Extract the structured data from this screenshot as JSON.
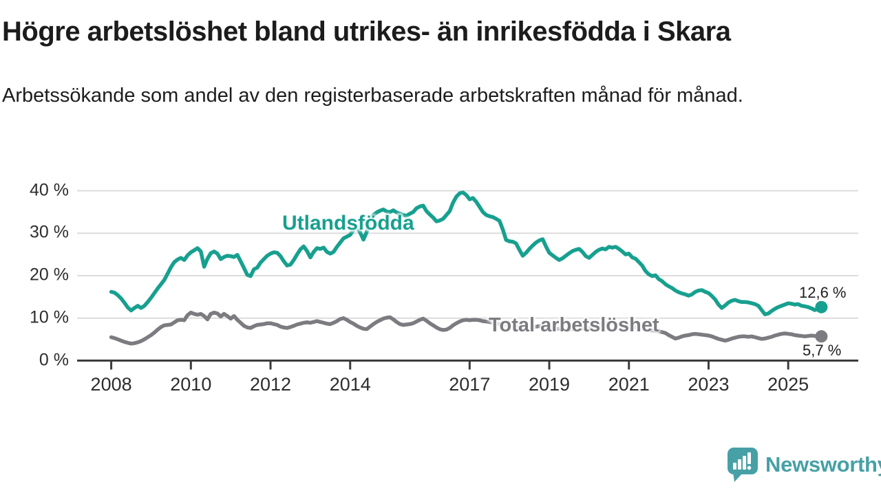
{
  "header": {
    "title": "Högre arbetslöshet bland utrikes- än inrikesfödda i Skara",
    "subtitle": "Arbetssökande som andel av den registerbaserade arbetskraften månad för månad."
  },
  "footer": {
    "brand_name": "Newsworthy"
  },
  "colors": {
    "series_foreign_born": "#17a08f",
    "series_total": "#7b7b80",
    "grid": "#dcdcdc",
    "axis": "#3c3c3c",
    "axis_text": "#2d2d2d",
    "logo_teal": "#47a0a6"
  },
  "chart_data": {
    "type": "line",
    "title": "Högre arbetslöshet bland utrikes- än inrikesfödda i Skara",
    "subtitle": "Arbetssökande som andel av den registerbaserade arbetskraften månad för månad.",
    "grid": true,
    "legend_position": "inline-labels-on-lines",
    "x_axis": {
      "unit": "year",
      "range_start": 2008.0,
      "range_end": 2025.83,
      "tick_years": [
        2008,
        2010,
        2012,
        2014,
        2017,
        2019,
        2021,
        2023,
        2025
      ],
      "tick_labels": [
        "2008",
        "2010",
        "2012",
        "2014",
        "2017",
        "2019",
        "2021",
        "2023",
        "2025"
      ]
    },
    "y_axis": {
      "unit": "percent",
      "ylim": [
        0,
        40
      ],
      "ticks": [
        0,
        10,
        20,
        30,
        40
      ],
      "tick_labels": [
        "0 %",
        "10 %",
        "20 %",
        "30 %",
        "40 %"
      ]
    },
    "series": [
      {
        "name": "Utlandsfödda",
        "label_annotation": "Utlandsfödda",
        "end_label": "12,6 %",
        "end_value": 12.6,
        "color": "#17a08f",
        "start_year": 2008,
        "points_per_year": 12,
        "values": [
          16.2,
          16.0,
          15.4,
          14.6,
          13.6,
          12.5,
          11.8,
          12.4,
          12.9,
          12.4,
          12.9,
          13.8,
          14.8,
          15.9,
          17.0,
          18.0,
          19.0,
          20.5,
          22.0,
          23.2,
          23.8,
          24.2,
          23.7,
          24.8,
          25.5,
          26.0,
          26.5,
          25.7,
          22.1,
          24.0,
          25.3,
          25.7,
          25.2,
          23.9,
          24.4,
          24.7,
          24.6,
          24.4,
          24.9,
          23.4,
          21.8,
          20.2,
          19.9,
          21.5,
          21.9,
          23.1,
          23.9,
          24.7,
          25.2,
          25.5,
          25.4,
          24.6,
          23.4,
          22.4,
          22.6,
          23.7,
          25.0,
          26.2,
          26.9,
          25.8,
          24.3,
          25.6,
          26.5,
          26.3,
          26.6,
          25.6,
          25.2,
          25.6,
          26.8,
          27.8,
          28.8,
          29.2,
          29.6,
          30.8,
          31.5,
          30.2,
          28.5,
          30.3,
          33.0,
          34.3,
          34.9,
          35.3,
          35.6,
          35.1,
          35.0,
          35.4,
          34.9,
          34.6,
          34.3,
          34.1,
          34.6,
          35.0,
          35.9,
          36.3,
          36.5,
          35.2,
          34.4,
          33.7,
          32.8,
          33.0,
          33.4,
          34.3,
          35.2,
          37.2,
          38.6,
          39.4,
          39.6,
          39.0,
          38.0,
          38.3,
          37.4,
          36.2,
          35.0,
          34.3,
          34.0,
          33.8,
          33.4,
          32.9,
          30.9,
          28.4,
          28.1,
          28.0,
          27.6,
          26.1,
          24.7,
          25.4,
          26.3,
          27.1,
          27.8,
          28.3,
          28.6,
          26.9,
          25.4,
          24.8,
          24.2,
          23.7,
          24.1,
          24.7,
          25.3,
          25.8,
          26.1,
          26.3,
          25.6,
          24.6,
          24.2,
          24.9,
          25.6,
          26.1,
          26.4,
          26.2,
          26.8,
          26.6,
          26.8,
          26.3,
          25.7,
          25.0,
          25.2,
          24.3,
          24.0,
          23.2,
          22.4,
          21.1,
          20.3,
          19.9,
          20.1,
          19.2,
          18.7,
          18.0,
          17.5,
          17.1,
          16.5,
          16.1,
          15.8,
          15.6,
          15.3,
          15.6,
          16.2,
          16.5,
          16.6,
          16.2,
          15.9,
          15.2,
          14.4,
          13.2,
          12.4,
          13.0,
          13.7,
          14.1,
          14.3,
          14.0,
          13.8,
          13.8,
          13.7,
          13.5,
          13.3,
          12.9,
          11.9,
          10.9,
          11.1,
          11.7,
          12.2,
          12.6,
          12.9,
          13.2,
          13.5,
          13.4,
          13.2,
          13.3,
          12.9,
          12.8,
          12.6,
          12.3,
          11.9,
          12.2,
          12.6
        ]
      },
      {
        "name": "Total arbetslöshet",
        "label_annotation": "Total arbetslöshet",
        "end_label": "5,7 %",
        "end_value": 5.7,
        "color": "#7b7b80",
        "start_year": 2008,
        "points_per_year": 12,
        "values": [
          5.5,
          5.3,
          5.0,
          4.7,
          4.4,
          4.2,
          4.0,
          4.1,
          4.3,
          4.6,
          5.0,
          5.5,
          6.0,
          6.6,
          7.3,
          7.9,
          8.3,
          8.4,
          8.5,
          9.0,
          9.5,
          9.6,
          9.5,
          10.7,
          11.3,
          11.0,
          10.8,
          11.0,
          10.5,
          9.7,
          11.0,
          11.3,
          11.1,
          10.4,
          11.0,
          10.5,
          9.9,
          10.5,
          9.6,
          8.9,
          8.2,
          7.8,
          7.7,
          8.1,
          8.4,
          8.5,
          8.6,
          8.8,
          8.8,
          8.6,
          8.4,
          8.0,
          7.8,
          7.7,
          7.9,
          8.2,
          8.5,
          8.7,
          8.9,
          9.0,
          8.9,
          9.1,
          9.3,
          9.1,
          8.9,
          8.7,
          8.6,
          8.9,
          9.3,
          9.8,
          10.0,
          9.6,
          9.1,
          8.7,
          8.2,
          7.8,
          7.5,
          7.4,
          8.0,
          8.6,
          9.1,
          9.5,
          9.9,
          10.1,
          10.2,
          9.7,
          9.1,
          8.6,
          8.4,
          8.5,
          8.6,
          8.8,
          9.2,
          9.6,
          9.9,
          9.4,
          8.8,
          8.3,
          7.8,
          7.4,
          7.2,
          7.3,
          7.7,
          8.3,
          8.8,
          9.2,
          9.5,
          9.6,
          9.5,
          9.6,
          9.6,
          9.5,
          9.3,
          9.2,
          9.1,
          8.9,
          8.8,
          8.6,
          8.5,
          8.4,
          8.3,
          8.2,
          8.1,
          8.0,
          7.9,
          7.8,
          7.8,
          7.9,
          8.0,
          8.1,
          8.1,
          8.0,
          7.9,
          7.8,
          7.6,
          7.5,
          7.4,
          7.3,
          7.3,
          7.4,
          7.5,
          7.6,
          7.6,
          7.6,
          7.6,
          7.8,
          8.1,
          8.4,
          8.7,
          8.9,
          8.8,
          8.7,
          8.6,
          8.5,
          8.4,
          8.3,
          8.2,
          8.1,
          7.9,
          7.8,
          7.6,
          7.4,
          7.2,
          7.1,
          7.0,
          6.9,
          6.7,
          6.5,
          6.0,
          5.6,
          5.2,
          5.4,
          5.7,
          5.9,
          6.0,
          6.2,
          6.3,
          6.2,
          6.1,
          6.0,
          5.9,
          5.7,
          5.4,
          5.1,
          4.9,
          4.7,
          4.9,
          5.2,
          5.4,
          5.6,
          5.7,
          5.7,
          5.6,
          5.7,
          5.5,
          5.3,
          5.1,
          5.2,
          5.4,
          5.6,
          5.9,
          6.1,
          6.3,
          6.4,
          6.3,
          6.2,
          6.0,
          5.9,
          5.8,
          5.7,
          5.8,
          5.9,
          5.8,
          5.7,
          5.7
        ]
      }
    ]
  }
}
